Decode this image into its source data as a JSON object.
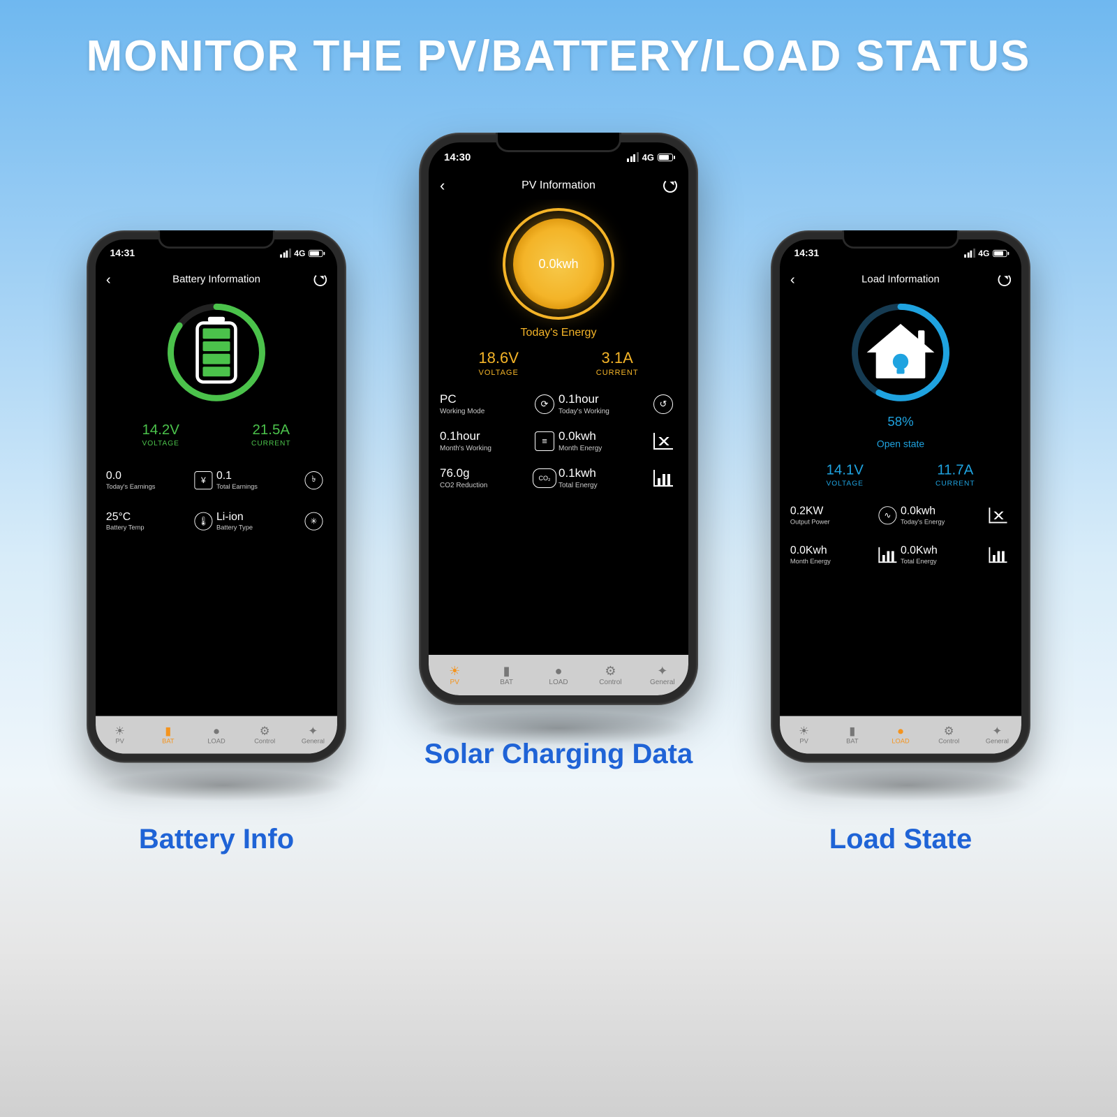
{
  "heading": "MONITOR THE PV/BATTERY/LOAD STATUS",
  "captions": {
    "battery": "Battery Info",
    "solar": "Solar Charging Data",
    "load": "Load State"
  },
  "colors": {
    "green": "#4bc24b",
    "yellow": "#f4b428",
    "blue": "#1fa3e0",
    "orange": "#f4941e",
    "caption": "#1f63d6",
    "tabbar": "#cfcfcf",
    "background_top": "#6fb8f0"
  },
  "tabs": [
    {
      "id": "pv",
      "label": "PV",
      "glyph": "☀"
    },
    {
      "id": "bat",
      "label": "BAT",
      "glyph": "▮"
    },
    {
      "id": "load",
      "label": "LOAD",
      "glyph": "●"
    },
    {
      "id": "control",
      "label": "Control",
      "glyph": "⚙"
    },
    {
      "id": "general",
      "label": "General",
      "glyph": "✦"
    }
  ],
  "phones": {
    "battery": {
      "time": "14:31",
      "net": "4G",
      "title": "Battery Information",
      "ring_color": "#4bc24b",
      "ring_percent": 85,
      "voltage": {
        "value": "14.2V",
        "label": "VOLTAGE"
      },
      "current": {
        "value": "21.5A",
        "label": "CURRENT"
      },
      "rows": [
        {
          "v": "0.0",
          "l": "Today's Earnings",
          "icon": "¥"
        },
        {
          "v": "0.1",
          "l": "Total Earnings",
          "icon": "coins"
        },
        {
          "v": "25°C",
          "l": "Battery Temp",
          "icon": "therm"
        },
        {
          "v": "Li-ion",
          "l": "Battery Type",
          "icon": "fan"
        }
      ],
      "active_tab": "bat"
    },
    "pv": {
      "time": "14:30",
      "net": "4G",
      "title": "PV Information",
      "center_value": "0.0kwh",
      "todays_label": "Today's  Energy",
      "voltage": {
        "value": "18.6V",
        "label": "VOLTAGE"
      },
      "current": {
        "value": "3.1A",
        "label": "CURRENT"
      },
      "rows": [
        {
          "v": "PC",
          "l": "Working Mode",
          "icon": "mode"
        },
        {
          "v": "0.1hour",
          "l": "Today's Working",
          "icon": "clock"
        },
        {
          "v": "0.1hour",
          "l": "Month's Working",
          "icon": "doc"
        },
        {
          "v": "0.0kwh",
          "l": "Month Energy",
          "icon": "line"
        },
        {
          "v": "76.0g",
          "l": "CO2 Reduction",
          "icon": "co2"
        },
        {
          "v": "0.1kwh",
          "l": "Total Energy",
          "icon": "bars"
        }
      ],
      "active_tab": "pv"
    },
    "load": {
      "time": "14:31",
      "net": "4G",
      "title": "Load Information",
      "ring_color": "#1fa3e0",
      "ring_percent": 58,
      "percent_text": "58%",
      "state_text": "Open state",
      "voltage": {
        "value": "14.1V",
        "label": "VOLTAGE"
      },
      "current": {
        "value": "11.7A",
        "label": "CURRENT"
      },
      "rows": [
        {
          "v": "0.2KW",
          "l": "Output Power",
          "icon": "pulse"
        },
        {
          "v": "0.0kwh",
          "l": "Today's Energy",
          "icon": "line"
        },
        {
          "v": "0.0Kwh",
          "l": "Month Energy",
          "icon": "bars"
        },
        {
          "v": "0.0Kwh",
          "l": "Total Energy",
          "icon": "bars"
        }
      ],
      "active_tab": "load"
    }
  }
}
